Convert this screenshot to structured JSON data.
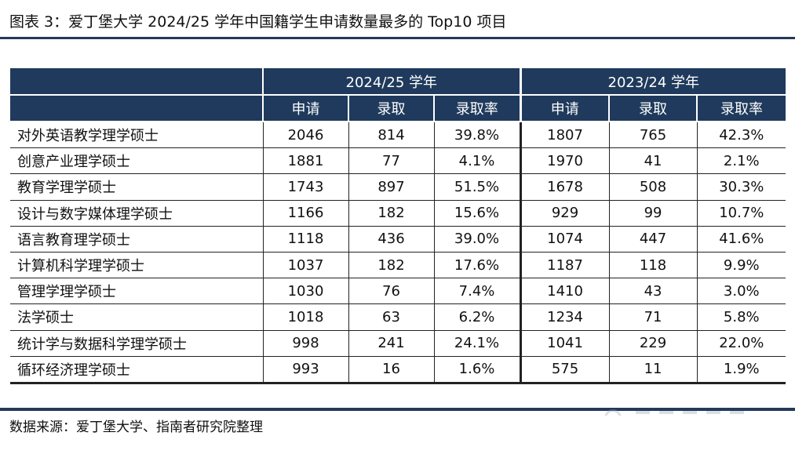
{
  "title": "图表 3：爱丁堡大学 2024/25 学年中国籍学生申请数量最多的 Top10 项目",
  "table": {
    "groups": [
      "2024/25 学年",
      "2023/24 学年"
    ],
    "subheaders": [
      "申请",
      "录取",
      "录取率",
      "申请",
      "录取",
      "录取率"
    ],
    "rows": [
      {
        "program": "对外英语教学理学硕士",
        "apply_2425": "2046",
        "admit_2425": "814",
        "rate_2425": "39.8%",
        "apply_2324": "1807",
        "admit_2324": "765",
        "rate_2324": "42.3%"
      },
      {
        "program": "创意产业理学硕士",
        "apply_2425": "1881",
        "admit_2425": "77",
        "rate_2425": "4.1%",
        "apply_2324": "1970",
        "admit_2324": "41",
        "rate_2324": "2.1%"
      },
      {
        "program": "教育学理学硕士",
        "apply_2425": "1743",
        "admit_2425": "897",
        "rate_2425": "51.5%",
        "apply_2324": "1678",
        "admit_2324": "508",
        "rate_2324": "30.3%"
      },
      {
        "program": "设计与数字媒体理学硕士",
        "apply_2425": "1166",
        "admit_2425": "182",
        "rate_2425": "15.6%",
        "apply_2324": "929",
        "admit_2324": "99",
        "rate_2324": "10.7%"
      },
      {
        "program": "语言教育理学硕士",
        "apply_2425": "1118",
        "admit_2425": "436",
        "rate_2425": "39.0%",
        "apply_2324": "1074",
        "admit_2324": "447",
        "rate_2324": "41.6%"
      },
      {
        "program": "计算机科学理学硕士",
        "apply_2425": "1037",
        "admit_2425": "182",
        "rate_2425": "17.6%",
        "apply_2324": "1187",
        "admit_2324": "118",
        "rate_2324": "9.9%"
      },
      {
        "program": "管理学理学硕士",
        "apply_2425": "1030",
        "admit_2425": "76",
        "rate_2425": "7.4%",
        "apply_2324": "1410",
        "admit_2324": "43",
        "rate_2324": "3.0%"
      },
      {
        "program": "法学硕士",
        "apply_2425": "1018",
        "admit_2425": "63",
        "rate_2425": "6.2%",
        "apply_2324": "1234",
        "admit_2324": "71",
        "rate_2324": "5.8%"
      },
      {
        "program": "统计学与数据科学理学硕士",
        "apply_2425": "998",
        "admit_2425": "241",
        "rate_2425": "24.1%",
        "apply_2324": "1041",
        "admit_2324": "229",
        "rate_2324": "22.0%"
      },
      {
        "program": "循环经济理学硕士",
        "apply_2425": "993",
        "admit_2425": "16",
        "rate_2425": "1.6%",
        "apply_2324": "575",
        "admit_2324": "11",
        "rate_2324": "1.9%"
      }
    ]
  },
  "source": "数据来源：爱丁堡大学、指南者研究院整理",
  "colors": {
    "header_bg": "#1f3a5c",
    "rule": "#24395a"
  }
}
